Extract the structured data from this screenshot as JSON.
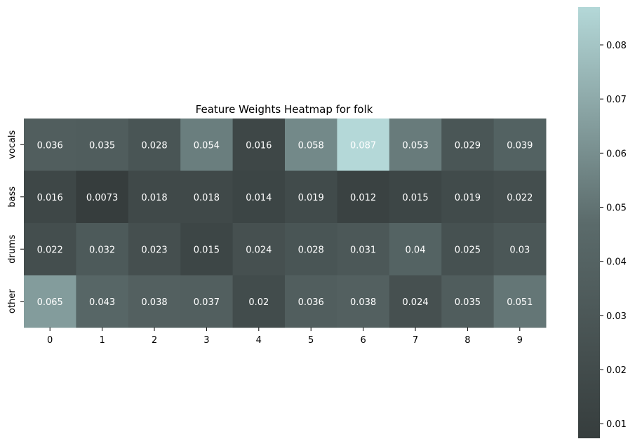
{
  "chart_data": {
    "type": "heatmap",
    "title": "Feature Weights Heatmap for folk",
    "xlabel": "",
    "ylabel": "",
    "x_categories": [
      "0",
      "1",
      "2",
      "3",
      "4",
      "5",
      "6",
      "7",
      "8",
      "9"
    ],
    "y_categories": [
      "vocals",
      "bass",
      "drums",
      "other"
    ],
    "values": [
      [
        0.036,
        0.035,
        0.028,
        0.054,
        0.016,
        0.058,
        0.087,
        0.053,
        0.029,
        0.039
      ],
      [
        0.016,
        0.0073,
        0.018,
        0.018,
        0.014,
        0.019,
        0.012,
        0.015,
        0.019,
        0.022
      ],
      [
        0.022,
        0.032,
        0.023,
        0.015,
        0.024,
        0.028,
        0.031,
        0.04,
        0.025,
        0.03
      ],
      [
        0.065,
        0.043,
        0.038,
        0.037,
        0.02,
        0.036,
        0.038,
        0.024,
        0.035,
        0.051
      ]
    ],
    "annotations": true,
    "colorbar": {
      "range": [
        0.0073,
        0.087
      ],
      "ticks": [
        0.01,
        0.02,
        0.03,
        0.04,
        0.05,
        0.06,
        0.07,
        0.08
      ],
      "tick_labels": [
        "0.01",
        "0.02",
        "0.03",
        "0.04",
        "0.05",
        "0.06",
        "0.07",
        "0.08"
      ],
      "placement": "right"
    },
    "colormap": {
      "low": "#363d3d",
      "mid": "#5b6b6b",
      "high": "#b4d8d8"
    },
    "annotation_color": "#ffffff",
    "grid": false
  }
}
